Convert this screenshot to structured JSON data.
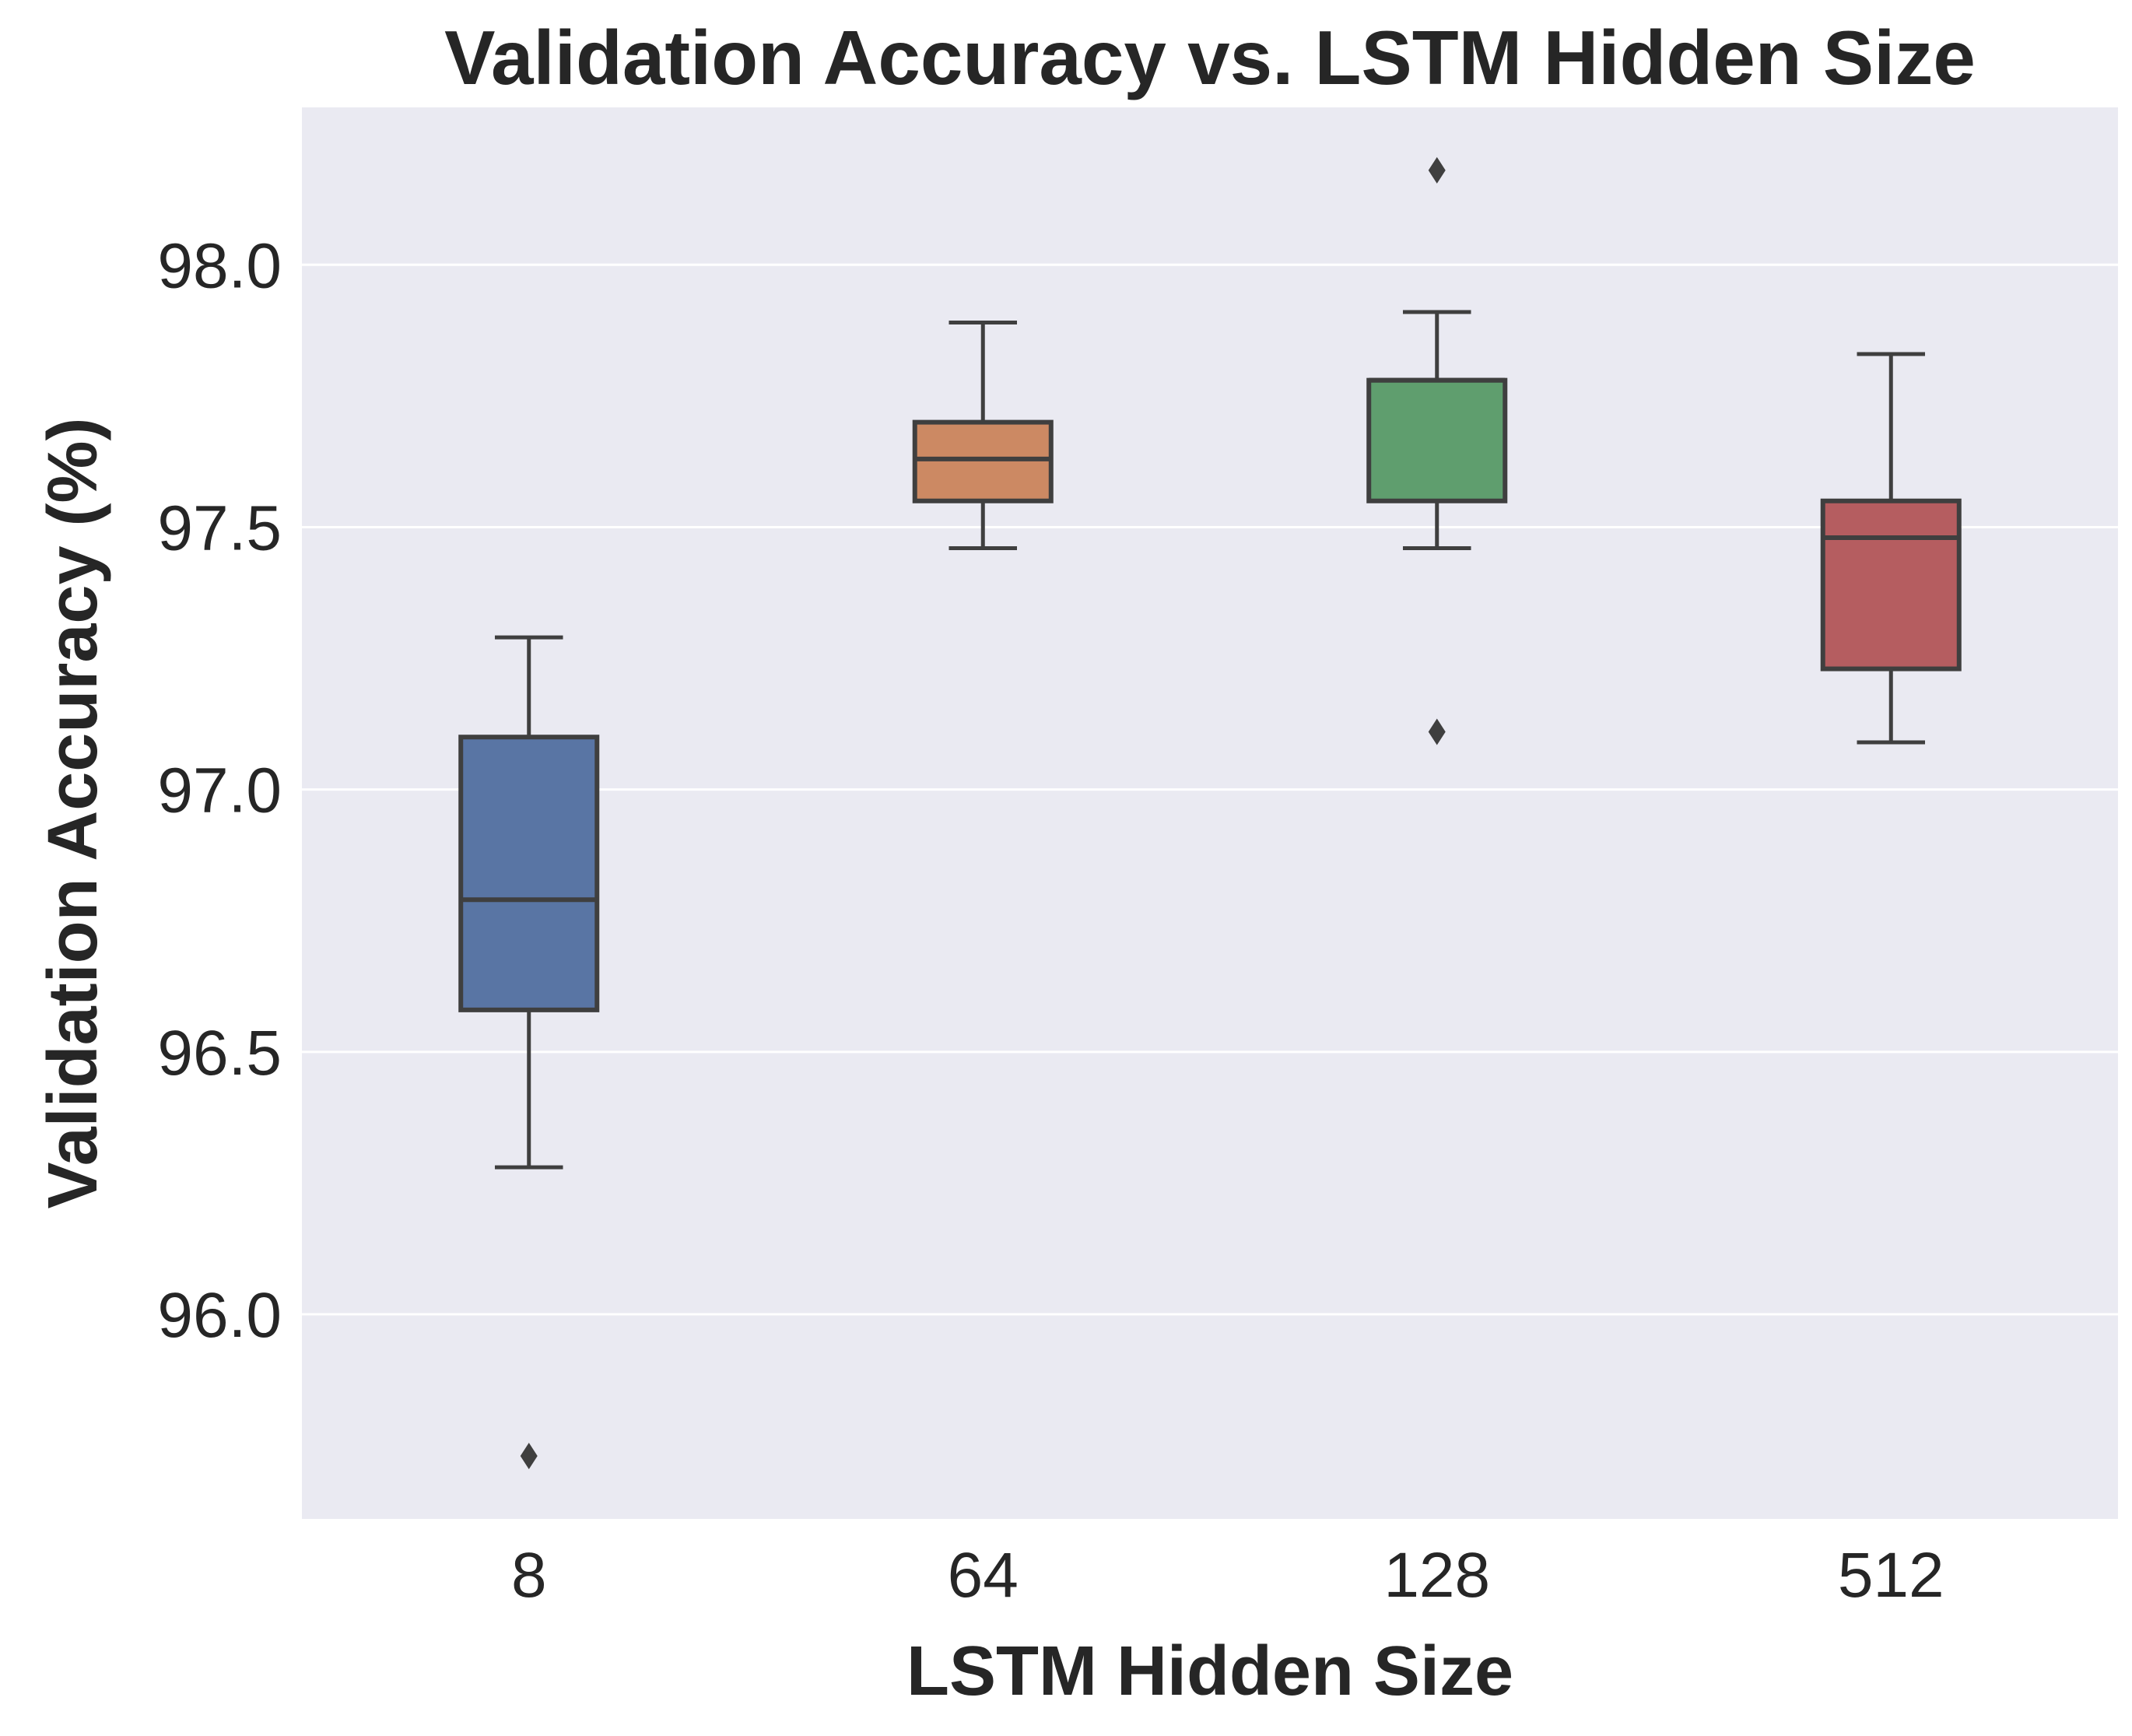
{
  "chart_data": {
    "type": "box",
    "title": "Validation Accuracy vs. LSTM Hidden Size",
    "xlabel": "LSTM Hidden Size",
    "ylabel": "Validation Accuracy (%)",
    "ylim": [
      95.61,
      98.3
    ],
    "yticks": [
      "96.0",
      "96.5",
      "97.0",
      "97.5",
      "98.0"
    ],
    "grid": true,
    "legend": "none",
    "categories": [
      "8",
      "64",
      "128",
      "512"
    ],
    "boxes": [
      {
        "category": "8",
        "whisker_low": 96.28,
        "q1": 96.58,
        "median": 96.79,
        "q3": 97.1,
        "whisker_high": 97.29,
        "outliers": [
          95.73
        ],
        "color": "#5975a4"
      },
      {
        "category": "64",
        "whisker_low": 97.46,
        "q1": 97.55,
        "median": 97.63,
        "q3": 97.7,
        "whisker_high": 97.89,
        "outliers": [],
        "color": "#cc8963"
      },
      {
        "category": "128",
        "whisker_low": 97.46,
        "q1": 97.55,
        "median": 97.78,
        "q3": 97.78,
        "whisker_high": 97.91,
        "outliers": [
          98.18,
          97.11
        ],
        "color": "#5f9e6e"
      },
      {
        "category": "512",
        "whisker_low": 97.09,
        "q1": 97.23,
        "median": 97.48,
        "q3": 97.55,
        "whisker_high": 97.83,
        "outliers": [],
        "color": "#b55d60"
      }
    ],
    "colors": {
      "background": "#eaeaf2",
      "grid": "#ffffff",
      "line": "#3f3f3f",
      "text": "#262626"
    }
  }
}
